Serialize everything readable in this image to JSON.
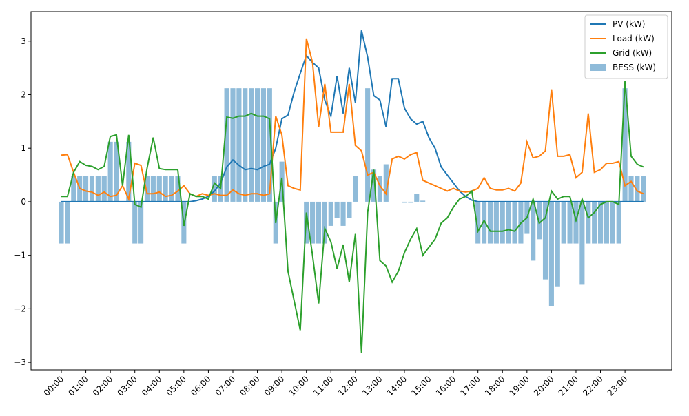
{
  "chart_data": {
    "type": "line-bar",
    "categories": [
      "00:00",
      null,
      null,
      null,
      "01:00",
      null,
      null,
      null,
      "02:00",
      null,
      null,
      null,
      "03:00",
      null,
      null,
      null,
      "04:00",
      null,
      null,
      null,
      "05:00",
      null,
      null,
      null,
      "06:00",
      null,
      null,
      null,
      "07:00",
      null,
      null,
      null,
      "08:00",
      null,
      null,
      null,
      "09:00",
      null,
      null,
      null,
      "10:00",
      null,
      null,
      null,
      "11:00",
      null,
      null,
      null,
      "12:00",
      null,
      null,
      null,
      "13:00",
      null,
      null,
      null,
      "14:00",
      null,
      null,
      null,
      "15:00",
      null,
      null,
      null,
      "16:00",
      null,
      null,
      null,
      "17:00",
      null,
      null,
      null,
      "18:00",
      null,
      null,
      null,
      "19:00",
      null,
      null,
      null,
      "20:00",
      null,
      null,
      null,
      "21:00",
      null,
      null,
      null,
      "22:00",
      null,
      null,
      null,
      "23:00",
      null,
      null,
      null
    ],
    "series": [
      {
        "name": "PV (kW)",
        "kind": "line",
        "color": "#1f77b4",
        "values": [
          0,
          0,
          0,
          0,
          0,
          0,
          0,
          0,
          0,
          0,
          0,
          0,
          0,
          0,
          0,
          0,
          0,
          0,
          0,
          0,
          0,
          0,
          0.02,
          0.05,
          0.1,
          0.2,
          0.35,
          0.65,
          0.78,
          0.68,
          0.6,
          0.62,
          0.6,
          0.66,
          0.7,
          1.0,
          1.55,
          1.62,
          2.05,
          2.4,
          2.73,
          2.6,
          2.5,
          1.9,
          1.6,
          2.35,
          1.65,
          2.5,
          1.85,
          3.2,
          2.7,
          1.98,
          1.9,
          1.4,
          2.3,
          2.3,
          1.75,
          1.55,
          1.45,
          1.5,
          1.2,
          1.0,
          0.65,
          0.5,
          0.35,
          0.2,
          0.1,
          0.03,
          0,
          0,
          0,
          0,
          0,
          0,
          0,
          0,
          0,
          0,
          0,
          0,
          0,
          0,
          0,
          0,
          0,
          0,
          0,
          0,
          0,
          0,
          0,
          0,
          0,
          0,
          0,
          0
        ]
      },
      {
        "name": "Load (kW)",
        "kind": "line",
        "color": "#ff7f0e",
        "values": [
          0.87,
          0.88,
          0.55,
          0.25,
          0.2,
          0.18,
          0.12,
          0.18,
          0.1,
          0.12,
          0.3,
          0.05,
          0.72,
          0.68,
          0.15,
          0.15,
          0.18,
          0.1,
          0.12,
          0.2,
          0.3,
          0.15,
          0.1,
          0.15,
          0.12,
          0.15,
          0.12,
          0.12,
          0.22,
          0.15,
          0.12,
          0.15,
          0.15,
          0.12,
          0.15,
          1.6,
          1.25,
          0.3,
          0.25,
          0.22,
          3.05,
          2.6,
          1.4,
          2.2,
          1.3,
          1.3,
          1.3,
          2.2,
          1.05,
          0.95,
          0.5,
          0.55,
          0.3,
          0.15,
          0.8,
          0.85,
          0.8,
          0.88,
          0.92,
          0.4,
          0.35,
          0.3,
          0.25,
          0.2,
          0.25,
          0.2,
          0.18,
          0.2,
          0.25,
          0.45,
          0.25,
          0.22,
          0.22,
          0.25,
          0.2,
          0.35,
          1.12,
          0.82,
          0.85,
          0.95,
          2.1,
          0.85,
          0.85,
          0.88,
          0.45,
          0.55,
          1.65,
          0.55,
          0.6,
          0.72,
          0.72,
          0.75,
          0.3,
          0.38,
          0.2,
          0.15
        ]
      },
      {
        "name": "Grid (kW)",
        "kind": "line",
        "color": "#2ca02c",
        "values": [
          0.1,
          0.1,
          0.55,
          0.75,
          0.68,
          0.66,
          0.6,
          0.66,
          1.22,
          1.25,
          0.3,
          1.25,
          -0.05,
          -0.1,
          0.63,
          1.2,
          0.62,
          0.6,
          0.6,
          0.6,
          -0.45,
          0.15,
          0.1,
          0.1,
          0.05,
          0.35,
          0.25,
          1.58,
          1.56,
          1.6,
          1.6,
          1.65,
          1.6,
          1.6,
          1.55,
          -0.4,
          0.45,
          -1.3,
          -1.85,
          -2.4,
          -0.2,
          -1.0,
          -1.9,
          -0.5,
          -0.75,
          -1.25,
          -0.8,
          -1.5,
          -0.6,
          -2.82,
          -0.2,
          0.6,
          -1.1,
          -1.2,
          -1.5,
          -1.3,
          -0.95,
          -0.7,
          -0.5,
          -1.0,
          -0.85,
          -0.7,
          -0.4,
          -0.3,
          -0.1,
          0.05,
          0.1,
          0.2,
          -0.55,
          -0.35,
          -0.55,
          -0.55,
          -0.55,
          -0.52,
          -0.55,
          -0.4,
          -0.3,
          0.05,
          -0.4,
          -0.3,
          0.2,
          0.05,
          0.1,
          0.1,
          -0.35,
          0.05,
          -0.3,
          -0.2,
          -0.05,
          0.0,
          0.0,
          -0.05,
          2.25,
          0.85,
          0.7,
          0.65
        ]
      },
      {
        "name": "BESS (kW)",
        "kind": "bar",
        "color": "#1f77b4",
        "values": [
          -0.78,
          -0.78,
          0.48,
          0.48,
          0.48,
          0.48,
          0.48,
          0.48,
          1.12,
          1.12,
          0,
          1.12,
          -0.78,
          -0.78,
          0.48,
          0.48,
          0.48,
          0.48,
          0.48,
          0.48,
          -0.78,
          0,
          0,
          0,
          0,
          0.48,
          0.48,
          2.12,
          2.12,
          2.12,
          2.12,
          2.12,
          2.12,
          2.12,
          2.12,
          -0.78,
          0.75,
          0,
          0,
          0,
          -0.78,
          -0.78,
          -0.78,
          -0.78,
          -0.45,
          -0.3,
          -0.45,
          -0.3,
          0.48,
          0,
          2.12,
          0.6,
          0.48,
          0.7,
          0,
          0,
          -0.02,
          -0.02,
          0.15,
          0.02,
          0,
          0,
          0,
          0,
          0,
          0,
          0,
          0,
          -0.78,
          -0.78,
          -0.78,
          -0.78,
          -0.78,
          -0.78,
          -0.78,
          -0.78,
          -0.6,
          -1.1,
          -0.7,
          -1.45,
          -1.95,
          -1.58,
          -0.78,
          -0.78,
          -0.78,
          -1.55,
          -0.78,
          -0.78,
          -0.78,
          -0.78,
          -0.78,
          -0.78,
          2.12,
          0.48,
          0.48,
          0.48
        ]
      }
    ],
    "ylim": [
      -3.14,
      3.55
    ],
    "yticks": [
      {
        "value": -3,
        "label": "−3"
      },
      {
        "value": -2,
        "label": "−2"
      },
      {
        "value": -1,
        "label": "−1"
      },
      0,
      1,
      2,
      3
    ],
    "legend": "upper right"
  }
}
